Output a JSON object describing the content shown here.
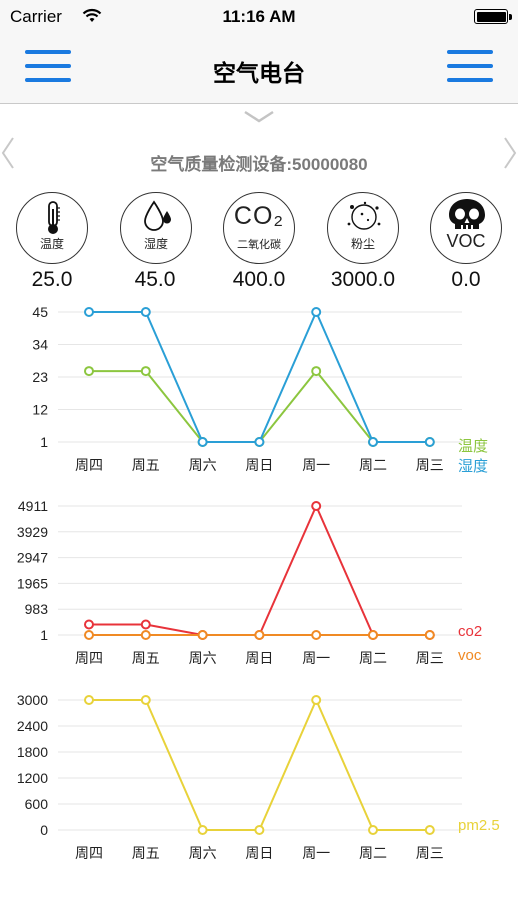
{
  "status_bar": {
    "carrier": "Carrier",
    "time": "11:16 AM"
  },
  "nav": {
    "title": "空气电台"
  },
  "device": {
    "label": "空气质量检测设备:50000080"
  },
  "sensors": [
    {
      "label": "温度",
      "value": "25.0",
      "icon": "thermometer-icon"
    },
    {
      "label": "湿度",
      "value": "45.0",
      "icon": "water-drop-icon"
    },
    {
      "label": "二氧化碳",
      "value": "400.0",
      "icon": "co2-icon",
      "symbol": "CO₂"
    },
    {
      "label": "粉尘",
      "value": "3000.0",
      "icon": "dust-icon"
    },
    {
      "label": "",
      "value": "0.0",
      "icon": "skull-icon",
      "symbol": "VOC"
    }
  ],
  "chart_data": [
    {
      "type": "line",
      "categories": [
        "周四",
        "周五",
        "周六",
        "周日",
        "周一",
        "周二",
        "周三"
      ],
      "yticks": [
        45,
        34,
        23,
        12,
        1
      ],
      "ylim": [
        1,
        45
      ],
      "series": [
        {
          "name": "温度",
          "color": "#8cc63f",
          "values": [
            25,
            25,
            1,
            1,
            25,
            1,
            1
          ]
        },
        {
          "name": "湿度",
          "color": "#2a9fd6",
          "values": [
            45,
            45,
            1,
            1,
            45,
            1,
            1
          ]
        }
      ]
    },
    {
      "type": "line",
      "categories": [
        "周四",
        "周五",
        "周六",
        "周日",
        "周一",
        "周二",
        "周三"
      ],
      "yticks": [
        4911,
        3929,
        2947,
        1965,
        983,
        1
      ],
      "ylim": [
        1,
        4911
      ],
      "series": [
        {
          "name": "co2",
          "color": "#e8333a",
          "values": [
            400,
            400,
            1,
            1,
            4911,
            1,
            1
          ]
        },
        {
          "name": "voc",
          "color": "#f08a24",
          "values": [
            0,
            0,
            0,
            0,
            0,
            0,
            0
          ]
        }
      ]
    },
    {
      "type": "line",
      "categories": [
        "周四",
        "周五",
        "周六",
        "周日",
        "周一",
        "周二",
        "周三"
      ],
      "yticks": [
        3000,
        2400,
        1800,
        1200,
        600,
        0
      ],
      "ylim": [
        0,
        3000
      ],
      "series": [
        {
          "name": "pm2.5",
          "color": "#e8d23a",
          "values": [
            3000,
            3000,
            0,
            0,
            3000,
            0,
            0
          ]
        }
      ]
    }
  ]
}
